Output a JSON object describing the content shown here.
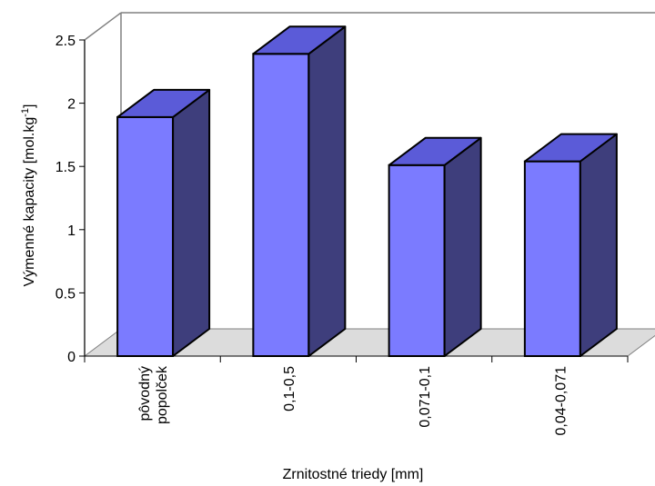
{
  "chart_data": {
    "type": "bar",
    "three_d": true,
    "categories": [
      [
        "pôvodný",
        "popolček"
      ],
      [
        "0,1-0,5"
      ],
      [
        "0,071-0,1"
      ],
      [
        "0,04-0,071"
      ]
    ],
    "values": [
      1.89,
      2.39,
      1.51,
      1.54
    ],
    "xlabel": "Zrnitostné triedy [mm]",
    "ylabel": "Výmenné kapacity [mol.kg",
    "ylabel_superscript": "-1",
    "ylabel_suffix": "]",
    "ylim": [
      0,
      2.5
    ],
    "yticks": [
      "0",
      "0.5",
      "1",
      "1.5",
      "2",
      "2.5"
    ],
    "grid": false,
    "legend": "none",
    "colors": {
      "bar_front": "#7b7bff",
      "bar_top": "#5b5bd8",
      "bar_side": "#3e3e7c",
      "floor": "#dcdcdc",
      "walls": "#808080"
    }
  }
}
